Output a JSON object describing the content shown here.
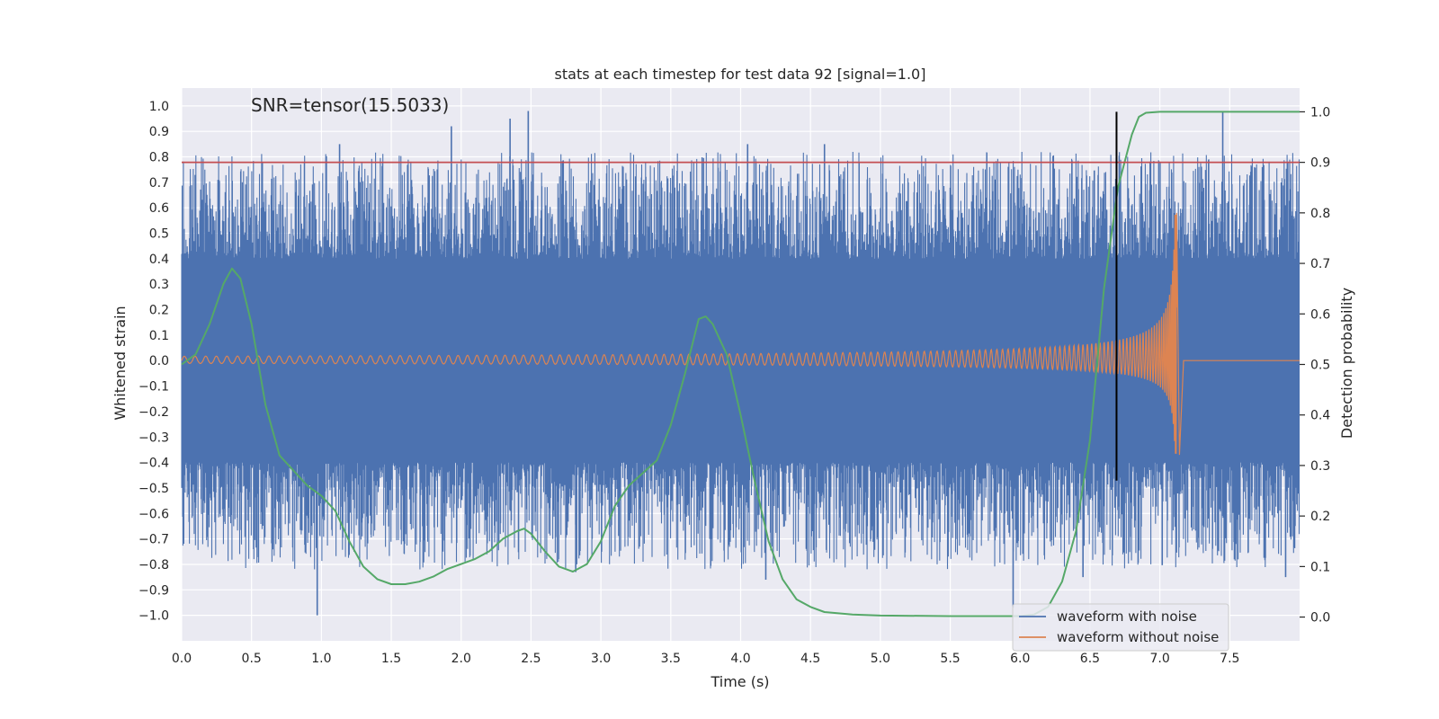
{
  "chart_data": {
    "type": "line",
    "title": "stats at each timestep for test data 92 [signal=1.0]",
    "annotation": "SNR=tensor(15.5033)",
    "xlabel": "Time (s)",
    "ylabel_left": "Whitened strain",
    "ylabel_right": "Detection probability",
    "xlim": [
      0,
      8
    ],
    "ylim_left": [
      -1.1,
      1.07
    ],
    "ylim_right": [
      -0.047,
      1.047
    ],
    "x_ticks": [
      "0.0",
      "0.5",
      "1.0",
      "1.5",
      "2.0",
      "2.5",
      "3.0",
      "3.5",
      "4.0",
      "4.5",
      "5.0",
      "5.5",
      "6.0",
      "6.5",
      "7.0",
      "7.5"
    ],
    "x_tick_values": [
      0,
      0.5,
      1,
      1.5,
      2,
      2.5,
      3,
      3.5,
      4,
      4.5,
      5,
      5.5,
      6,
      6.5,
      7,
      7.5
    ],
    "y_left_ticks": [
      "1.0",
      "0.9",
      "0.8",
      "0.7",
      "0.6",
      "0.5",
      "0.4",
      "0.3",
      "0.2",
      "0.1",
      "0.0",
      "−0.1",
      "−0.2",
      "−0.3",
      "−0.4",
      "−0.5",
      "−0.6",
      "−0.7",
      "−0.8",
      "−0.9",
      "−1.0"
    ],
    "y_left_tick_values": [
      1.0,
      0.9,
      0.8,
      0.7,
      0.6,
      0.5,
      0.4,
      0.3,
      0.2,
      0.1,
      0.0,
      -0.1,
      -0.2,
      -0.3,
      -0.4,
      -0.5,
      -0.6,
      -0.7,
      -0.8,
      -0.9,
      -1.0
    ],
    "y_right_ticks": [
      "1.0",
      "0.9",
      "0.8",
      "0.7",
      "0.6",
      "0.5",
      "0.4",
      "0.3",
      "0.2",
      "0.1",
      "0.0"
    ],
    "y_right_tick_values": [
      1.0,
      0.9,
      0.8,
      0.7,
      0.6,
      0.5,
      0.4,
      0.3,
      0.2,
      0.1,
      0.0
    ],
    "threshold_prob": 0.9,
    "detection_time": 6.69,
    "series": [
      {
        "name": "waveform with noise",
        "axis": "left",
        "description": "noisy whitened strain, band mostly within ±0.4 with spikes near ±0.8",
        "band_amplitude": 0.4,
        "spikes": [
          {
            "x": 0.97,
            "y": -1.0
          },
          {
            "x": 1.13,
            "y": 0.85
          },
          {
            "x": 1.93,
            "y": 0.92
          },
          {
            "x": 2.35,
            "y": 0.95
          },
          {
            "x": 2.48,
            "y": 0.98
          },
          {
            "x": 2.82,
            "y": -0.83
          },
          {
            "x": 4.18,
            "y": -0.86
          },
          {
            "x": 4.05,
            "y": 0.85
          },
          {
            "x": 4.6,
            "y": 0.85
          },
          {
            "x": 5.95,
            "y": -0.97
          },
          {
            "x": 6.45,
            "y": -0.85
          },
          {
            "x": 7.45,
            "y": 0.98
          },
          {
            "x": 7.9,
            "y": -0.85
          }
        ]
      },
      {
        "name": "waveform without noise",
        "axis": "left",
        "description": "inspiral chirp growing to merger near t=7.12 s then ringdown to zero",
        "merger_time": 7.12,
        "peak_pos": 0.58,
        "peak_neg": -0.37
      },
      {
        "name": "detection probability",
        "axis": "right",
        "x": [
          0.0,
          0.1,
          0.2,
          0.3,
          0.36,
          0.42,
          0.5,
          0.6,
          0.7,
          0.8,
          0.9,
          1.0,
          1.1,
          1.2,
          1.3,
          1.4,
          1.5,
          1.6,
          1.7,
          1.8,
          1.9,
          2.0,
          2.1,
          2.2,
          2.3,
          2.4,
          2.45,
          2.5,
          2.6,
          2.7,
          2.8,
          2.9,
          3.0,
          3.1,
          3.2,
          3.3,
          3.4,
          3.5,
          3.6,
          3.7,
          3.75,
          3.8,
          3.9,
          4.0,
          4.1,
          4.2,
          4.3,
          4.4,
          4.5,
          4.6,
          4.8,
          5.0,
          5.5,
          6.0,
          6.1,
          6.2,
          6.3,
          6.4,
          6.5,
          6.6,
          6.7,
          6.8,
          6.85,
          6.9,
          7.0,
          7.5,
          8.0
        ],
        "y": [
          0.5,
          0.52,
          0.58,
          0.66,
          0.69,
          0.67,
          0.58,
          0.42,
          0.32,
          0.29,
          0.26,
          0.24,
          0.21,
          0.15,
          0.1,
          0.075,
          0.065,
          0.065,
          0.07,
          0.08,
          0.095,
          0.105,
          0.115,
          0.13,
          0.155,
          0.17,
          0.175,
          0.165,
          0.13,
          0.1,
          0.09,
          0.105,
          0.15,
          0.22,
          0.26,
          0.285,
          0.31,
          0.38,
          0.48,
          0.59,
          0.595,
          0.58,
          0.52,
          0.4,
          0.27,
          0.15,
          0.075,
          0.035,
          0.02,
          0.01,
          0.005,
          0.003,
          0.002,
          0.002,
          0.005,
          0.02,
          0.07,
          0.17,
          0.35,
          0.65,
          0.85,
          0.955,
          0.99,
          0.998,
          1.0,
          1.0,
          1.0
        ]
      }
    ],
    "legend": {
      "placement": "bottom-right",
      "entries": [
        {
          "label": "waveform with noise",
          "color": "#4c72b0"
        },
        {
          "label": "waveform without noise",
          "color": "#dd8452"
        }
      ]
    }
  },
  "colors": {
    "noise": "#4c72b0",
    "clean": "#dd8452",
    "prob": "#55a868",
    "threshold": "#c44e52",
    "detection": "#000000",
    "axes_bg": "#eaeaf2",
    "grid": "#ffffff"
  }
}
